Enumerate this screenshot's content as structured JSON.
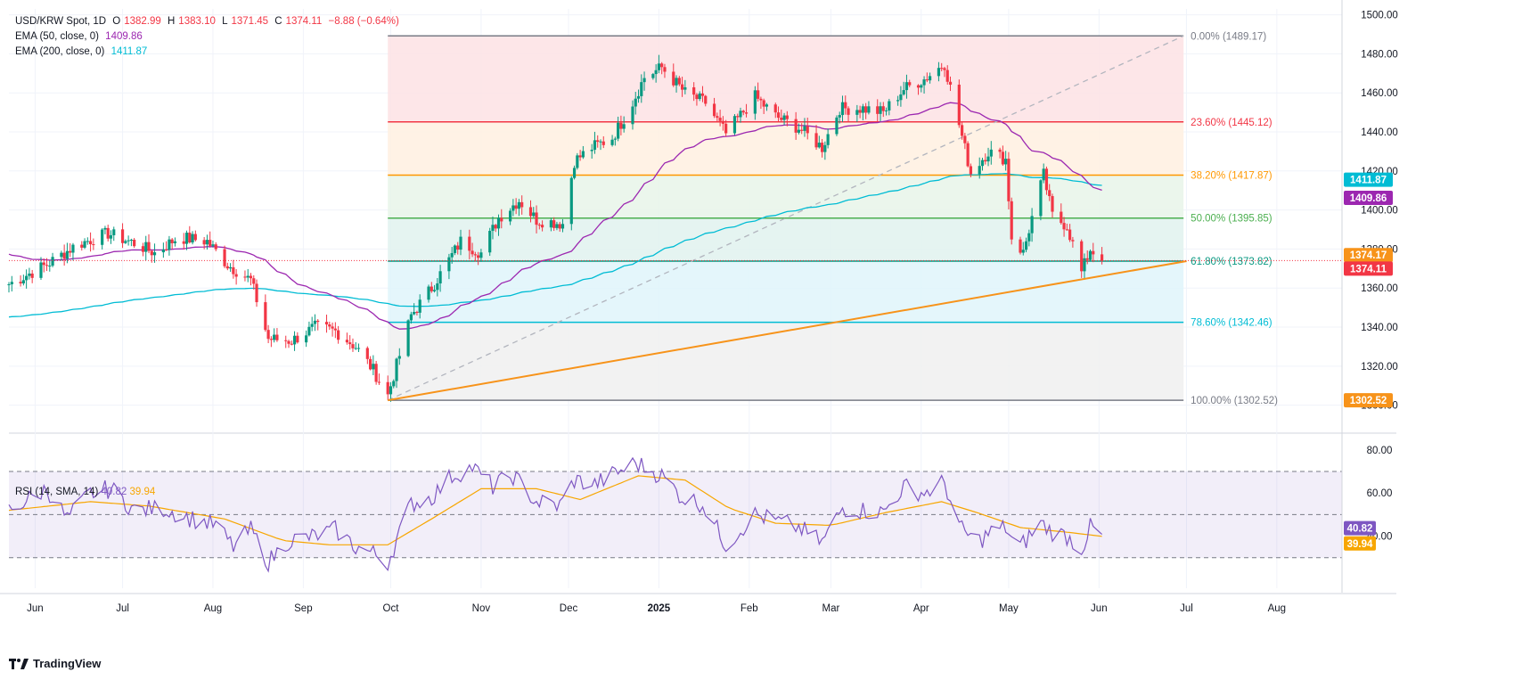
{
  "legend": {
    "symbol": "USD/KRW Spot, 1D",
    "open_label": "O",
    "open": "1382.99",
    "high_label": "H",
    "high": "1383.10",
    "low_label": "L",
    "low": "1371.45",
    "close_label": "C",
    "close": "1374.11",
    "change": "−8.88 (−0.64%)",
    "ema50_label": "EMA (50, close, 0)",
    "ema50_value": "1409.86",
    "ema200_label": "EMA (200, close, 0)",
    "ema200_value": "1411.87",
    "rsi_label": "RSI (14, SMA, 14)",
    "rsi_value": "40.82",
    "rsi_sma_value": "39.94"
  },
  "brand": "TradingView",
  "colors": {
    "up": "#089981",
    "down": "#f23645",
    "ema50": "#9c27b0",
    "ema200": "#00bcd4",
    "rsi": "#7e57c2",
    "rsi_ma": "#f7a600",
    "trendline": "#f7931a",
    "grid": "#f0f3fa"
  },
  "chart_data": [
    {
      "type": "candlestick",
      "title": "USD/KRW Spot, 1D",
      "x_tick_labels": [
        "Jun",
        "Jul",
        "Aug",
        "Sep",
        "Oct",
        "Nov",
        "Dec",
        "2025",
        "Feb",
        "Mar",
        "Apr",
        "May",
        "Jun",
        "Jul",
        "Aug"
      ],
      "y_tick_labels": [
        "1500.00",
        "1480.00",
        "1460.00",
        "1440.00",
        "1420.00",
        "1400.00",
        "1380.00",
        "1360.00",
        "1340.00",
        "1320.00",
        "1300.00"
      ],
      "ylim": [
        1293,
        1503
      ],
      "grid": true,
      "close_keyframes": [
        [
          "2024-05-23",
          1362
        ],
        [
          "2024-06-05",
          1372
        ],
        [
          "2024-06-15",
          1382
        ],
        [
          "2024-06-26",
          1388
        ],
        [
          "2024-07-05",
          1383
        ],
        [
          "2024-07-12",
          1378
        ],
        [
          "2024-07-20",
          1386
        ],
        [
          "2024-07-30",
          1384
        ],
        [
          "2024-08-06",
          1372
        ],
        [
          "2024-08-14",
          1364
        ],
        [
          "2024-08-20",
          1334
        ],
        [
          "2024-08-28",
          1333
        ],
        [
          "2024-09-05",
          1340
        ],
        [
          "2024-09-12",
          1338
        ],
        [
          "2024-09-19",
          1330
        ],
        [
          "2024-09-25",
          1318
        ],
        [
          "2024-09-30",
          1305
        ],
        [
          "2024-10-08",
          1346
        ],
        [
          "2024-10-15",
          1360
        ],
        [
          "2024-10-25",
          1384
        ],
        [
          "2024-11-01",
          1378
        ],
        [
          "2024-11-07",
          1396
        ],
        [
          "2024-11-14",
          1405
        ],
        [
          "2024-11-20",
          1395
        ],
        [
          "2024-11-29",
          1393
        ],
        [
          "2024-12-03",
          1425
        ],
        [
          "2024-12-09",
          1432
        ],
        [
          "2024-12-16",
          1437
        ],
        [
          "2024-12-22",
          1452
        ],
        [
          "2024-12-27",
          1468
        ],
        [
          "2025-01-02",
          1473
        ],
        [
          "2025-01-10",
          1460
        ],
        [
          "2025-01-17",
          1455
        ],
        [
          "2025-01-24",
          1439
        ],
        [
          "2025-02-03",
          1458
        ],
        [
          "2025-02-10",
          1448
        ],
        [
          "2025-02-18",
          1442
        ],
        [
          "2025-02-26",
          1432
        ],
        [
          "2025-03-04",
          1452
        ],
        [
          "2025-03-12",
          1452
        ],
        [
          "2025-03-19",
          1450
        ],
        [
          "2025-03-26",
          1462
        ],
        [
          "2025-04-02",
          1467
        ],
        [
          "2025-04-09",
          1475
        ],
        [
          "2025-04-13",
          1450
        ],
        [
          "2025-04-18",
          1419
        ],
        [
          "2025-04-24",
          1430
        ],
        [
          "2025-04-30",
          1426
        ],
        [
          "2025-05-02",
          1386
        ],
        [
          "2025-05-06",
          1378
        ],
        [
          "2025-05-09",
          1396
        ],
        [
          "2025-05-13",
          1418
        ],
        [
          "2025-05-16",
          1397
        ],
        [
          "2025-05-21",
          1392
        ],
        [
          "2025-05-26",
          1368
        ],
        [
          "2025-05-29",
          1380
        ],
        [
          "2025-06-02",
          1374.11
        ]
      ],
      "series": [
        {
          "name": "EMA (50, close, 0)",
          "last": 1409.86
        },
        {
          "name": "EMA (200, close, 0)",
          "last": 1411.87
        }
      ],
      "fibonacci": {
        "start": [
          "2024-09-30",
          1302.52
        ],
        "end": [
          "2025-06-30",
          1489.17
        ],
        "levels": [
          {
            "ratio": "0.00%",
            "value": 1489.17,
            "label": "0.00% (1489.17)",
            "line": "#787b86",
            "fill": "#fde2e4"
          },
          {
            "ratio": "23.60%",
            "value": 1445.12,
            "label": "23.60% (1445.12)",
            "line": "#f23645",
            "fill": "#fff0e0"
          },
          {
            "ratio": "38.20%",
            "value": 1417.87,
            "label": "38.20% (1417.87)",
            "line": "#ff9800",
            "fill": "#e8f5e9"
          },
          {
            "ratio": "50.00%",
            "value": 1395.85,
            "label": "50.00% (1395.85)",
            "line": "#4caf50",
            "fill": "#e0f2ef"
          },
          {
            "ratio": "61.80%",
            "value": 1373.82,
            "label": "61.80% (1373.82)",
            "line": "#089981",
            "fill": "#dff5fa"
          },
          {
            "ratio": "78.60%",
            "value": 1342.46,
            "label": "78.60% (1342.46)",
            "line": "#00bcd4",
            "fill": "#f0f0f0"
          },
          {
            "ratio": "100.00%",
            "value": 1302.52,
            "label": "100.00% (1302.52)",
            "line": "#787b86",
            "fill": null
          }
        ]
      },
      "trendline": {
        "from": [
          "2024-09-30",
          1302.52
        ],
        "to": [
          "2025-06-02",
          1373.82
        ]
      },
      "price_tags": [
        {
          "text": "1411.87",
          "value": 1411.87,
          "color": "#00bcd4"
        },
        {
          "text": "1409.86",
          "value": 1409.86,
          "color": "#9c27b0"
        },
        {
          "text": "1374.17",
          "value": 1374.17,
          "color": "#f7931a"
        },
        {
          "text": "1374.11",
          "value": 1374.11,
          "color": "#f23645"
        },
        {
          "text": "1302.52",
          "value": 1302.52,
          "color": "#f7931a"
        }
      ]
    },
    {
      "type": "line",
      "title": "RSI (14, SMA, 14)",
      "y_tick_labels": [
        "80.00",
        "60.00",
        "40.00"
      ],
      "ylim": [
        20,
        82
      ],
      "bands": [
        70,
        50,
        30
      ],
      "series": [
        {
          "name": "RSI",
          "keyframes": [
            [
              "2024-05-23",
              52
            ],
            [
              "2024-06-05",
              62
            ],
            [
              "2024-06-12",
              48
            ],
            [
              "2024-06-20",
              60
            ],
            [
              "2024-06-27",
              62
            ],
            [
              "2024-07-05",
              52
            ],
            [
              "2024-07-15",
              53
            ],
            [
              "2024-07-25",
              48
            ],
            [
              "2024-08-02",
              45
            ],
            [
              "2024-08-08",
              35
            ],
            [
              "2024-08-14",
              43
            ],
            [
              "2024-08-20",
              28
            ],
            [
              "2024-08-27",
              38
            ],
            [
              "2024-09-05",
              40
            ],
            [
              "2024-09-12",
              43
            ],
            [
              "2024-09-19",
              35
            ],
            [
              "2024-09-25",
              32
            ],
            [
              "2024-09-30",
              28
            ],
            [
              "2024-10-08",
              55
            ],
            [
              "2024-10-15",
              58
            ],
            [
              "2024-10-22",
              68
            ],
            [
              "2024-10-29",
              72
            ],
            [
              "2024-11-05",
              63
            ],
            [
              "2024-11-12",
              68
            ],
            [
              "2024-11-20",
              56
            ],
            [
              "2024-11-28",
              54
            ],
            [
              "2024-12-03",
              66
            ],
            [
              "2024-12-10",
              64
            ],
            [
              "2024-12-17",
              69
            ],
            [
              "2024-12-24",
              74
            ],
            [
              "2025-01-02",
              68
            ],
            [
              "2025-01-09",
              58
            ],
            [
              "2025-01-16",
              55
            ],
            [
              "2025-01-24",
              36
            ],
            [
              "2025-02-03",
              50
            ],
            [
              "2025-02-10",
              47
            ],
            [
              "2025-02-18",
              44
            ],
            [
              "2025-02-26",
              37
            ],
            [
              "2025-03-05",
              53
            ],
            [
              "2025-03-12",
              52
            ],
            [
              "2025-03-19",
              51
            ],
            [
              "2025-03-26",
              63
            ],
            [
              "2025-04-02",
              60
            ],
            [
              "2025-04-09",
              65
            ],
            [
              "2025-04-14",
              44
            ],
            [
              "2025-04-20",
              37
            ],
            [
              "2025-04-25",
              42
            ],
            [
              "2025-04-30",
              44
            ],
            [
              "2025-05-04",
              33
            ],
            [
              "2025-05-08",
              40
            ],
            [
              "2025-05-12",
              46
            ],
            [
              "2025-05-16",
              42
            ],
            [
              "2025-05-21",
              40
            ],
            [
              "2025-05-26",
              34
            ],
            [
              "2025-05-29",
              44
            ],
            [
              "2025-06-02",
              40.82
            ]
          ]
        },
        {
          "name": "RSI-based MA",
          "keyframes": [
            [
              "2024-05-23",
              52
            ],
            [
              "2024-06-20",
              56
            ],
            [
              "2024-07-10",
              54
            ],
            [
              "2024-08-05",
              48
            ],
            [
              "2024-08-25",
              38
            ],
            [
              "2024-09-10",
              36
            ],
            [
              "2024-09-30",
              36
            ],
            [
              "2024-10-15",
              48
            ],
            [
              "2024-11-01",
              62
            ],
            [
              "2024-11-20",
              62
            ],
            [
              "2024-12-05",
              57
            ],
            [
              "2024-12-25",
              68
            ],
            [
              "2025-01-10",
              66
            ],
            [
              "2025-01-25",
              53
            ],
            [
              "2025-02-10",
              46
            ],
            [
              "2025-03-01",
              45
            ],
            [
              "2025-03-20",
              51
            ],
            [
              "2025-04-08",
              56
            ],
            [
              "2025-04-20",
              51
            ],
            [
              "2025-05-05",
              44
            ],
            [
              "2025-05-20",
              42
            ],
            [
              "2025-06-02",
              39.94
            ]
          ]
        }
      ]
    }
  ]
}
